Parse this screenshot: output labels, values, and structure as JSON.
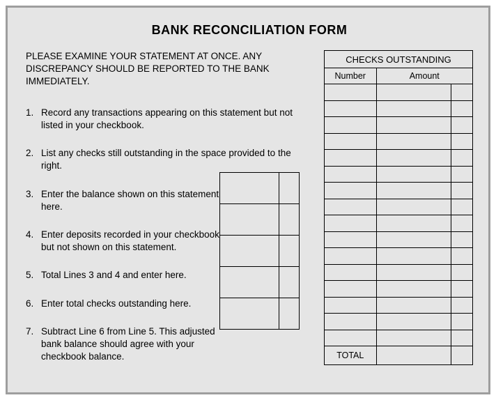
{
  "title": "BANK RECONCILIATION FORM",
  "intro": "PLEASE EXAMINE YOUR STATEMENT AT ONCE. ANY DISCREPANCY SHOULD BE REPORTED TO THE BANK IMMEDIATELY.",
  "steps": [
    "Record any transactions appearing on this statement but not listed in your checkbook.",
    "List any checks still outstanding in the space provided to the right.",
    "Enter the balance shown on this statement here.",
    "Enter deposits recorded in your checkbook but not shown on this statement.",
    "Total Lines 3 and 4 and enter here.",
    "Enter total checks outstanding here.",
    "Subtract Line 6 from Line 5. This adjusted bank balance should agree with your checkbook balance."
  ],
  "checks": {
    "header": "CHECKS OUTSTANDING",
    "col_number": "Number",
    "col_amount": "Amount",
    "row_count": 16,
    "total_label": "TOTAL"
  },
  "mini_rows": 5,
  "colors": {
    "background": "#e5e5e5",
    "frame_border": "#9e9e9e",
    "line": "#000000",
    "text": "#000000"
  }
}
